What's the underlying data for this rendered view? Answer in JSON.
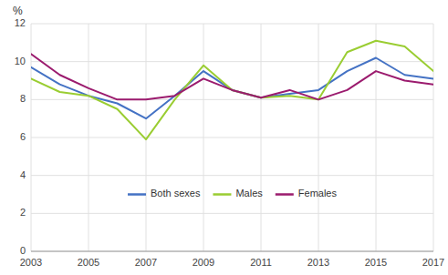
{
  "chart_data": {
    "type": "line",
    "y_label": "%",
    "x": [
      2003,
      2004,
      2005,
      2006,
      2007,
      2008,
      2009,
      2010,
      2011,
      2012,
      2013,
      2014,
      2015,
      2016,
      2017
    ],
    "series": [
      {
        "name": "Both sexes",
        "color": "#4472c4",
        "values": [
          9.7,
          8.8,
          8.2,
          7.8,
          7.0,
          8.2,
          9.5,
          8.5,
          8.1,
          8.3,
          8.5,
          9.5,
          10.2,
          9.3,
          9.1
        ]
      },
      {
        "name": "Males",
        "color": "#9acd32",
        "values": [
          9.1,
          8.4,
          8.2,
          7.5,
          5.9,
          8.0,
          9.8,
          8.5,
          8.1,
          8.2,
          8.0,
          10.5,
          11.1,
          10.8,
          9.5
        ]
      },
      {
        "name": "Females",
        "color": "#9b1b6e",
        "values": [
          10.4,
          9.3,
          8.6,
          8.0,
          8.0,
          8.2,
          9.1,
          8.5,
          8.1,
          8.5,
          8.0,
          8.5,
          9.5,
          9.0,
          8.8
        ]
      }
    ],
    "xlim": [
      2003,
      2017
    ],
    "xticks": [
      2003,
      2005,
      2007,
      2009,
      2011,
      2013,
      2015,
      2017
    ],
    "ylim": [
      0,
      12
    ],
    "yticks": [
      0,
      2,
      4,
      6,
      8,
      10,
      12
    ],
    "grid": true,
    "legend": "bottom"
  }
}
